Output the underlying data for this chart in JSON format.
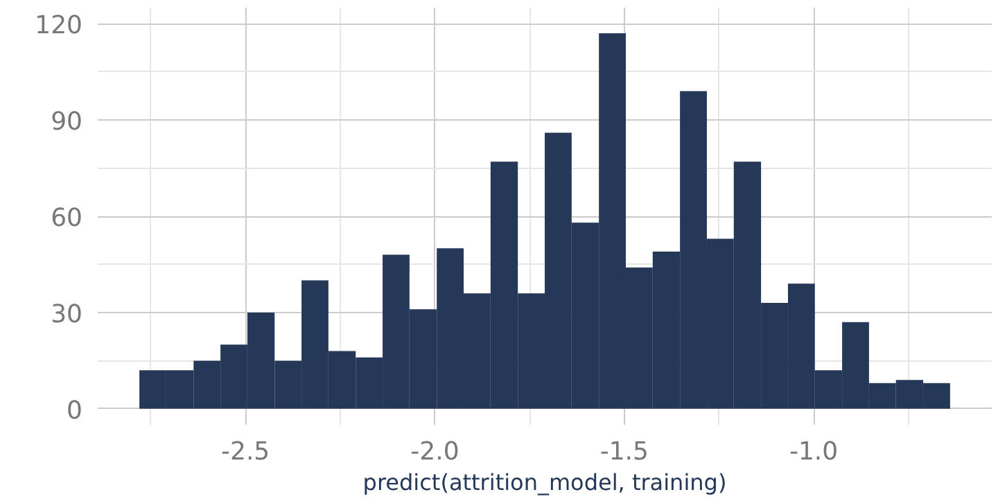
{
  "chart_data": {
    "type": "histogram",
    "xlabel": "predict(attrition_model, training)",
    "color": "#253858",
    "bins": [
      -2.78,
      -2.709,
      -2.637,
      -2.566,
      -2.495,
      -2.423,
      -2.352,
      -2.281,
      -2.209,
      -2.138,
      -2.067,
      -1.995,
      -1.924,
      -1.853,
      -1.781,
      -1.71,
      -1.639,
      -1.567,
      -1.496,
      -1.425,
      -1.353,
      -1.282,
      -1.211,
      -1.139,
      -1.068,
      -0.997,
      -0.925,
      -0.854,
      -0.783,
      -0.711,
      -0.64
    ],
    "values": [
      12,
      12,
      15,
      20,
      30,
      15,
      40,
      18,
      16,
      48,
      31,
      50,
      36,
      77,
      36,
      86,
      58,
      117,
      44,
      49,
      99,
      53,
      77,
      33,
      39,
      12,
      27,
      8,
      9,
      8
    ],
    "xlim": [
      -2.89,
      -0.53
    ],
    "ylim": [
      -5,
      125
    ],
    "xticks": [
      {
        "value": -2.5,
        "label": "-2.5"
      },
      {
        "value": -2.0,
        "label": "-2.0"
      },
      {
        "value": -1.5,
        "label": "-1.5"
      },
      {
        "value": -1.0,
        "label": "-1.0"
      }
    ],
    "yticks": [
      0,
      30,
      60,
      90,
      120
    ],
    "grid": true
  }
}
